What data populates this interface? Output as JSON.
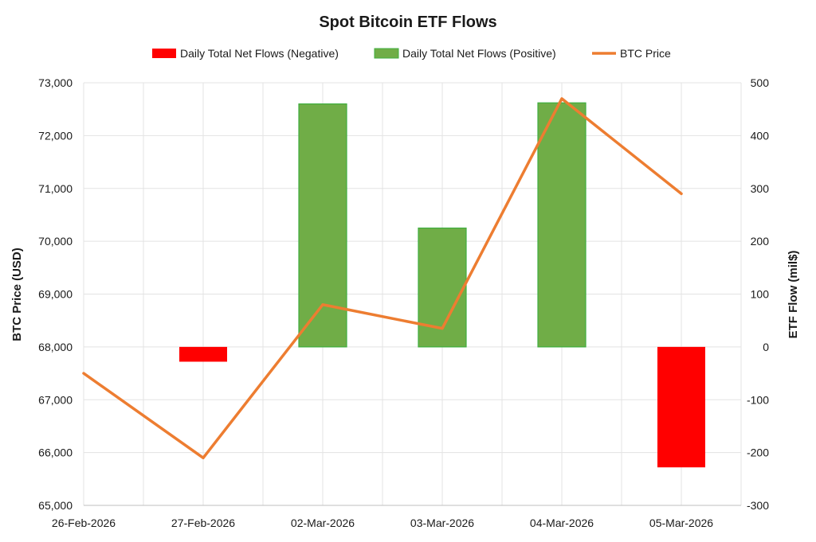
{
  "chart_data": {
    "type": "bar+line",
    "title": "Spot Bitcoin ETF Flows",
    "categories": [
      "26-Feb-2026",
      "27-Feb-2026",
      "02-Mar-2026",
      "03-Mar-2026",
      "04-Mar-2026",
      "05-Mar-2026"
    ],
    "flows": [
      null,
      -28,
      460,
      225,
      462,
      -228
    ],
    "btc_price": [
      67500,
      65900,
      68800,
      68350,
      72700,
      70900
    ],
    "legend": {
      "negative": "Daily Total Net Flows (Negative)",
      "positive": "Daily Total Net Flows (Positive)",
      "price": "BTC Price"
    },
    "legend_position": "top",
    "y_left": {
      "label": "BTC Price (USD)",
      "min": 65000,
      "max": 73000,
      "ticks": [
        "65,000",
        "66,000",
        "67,000",
        "68,000",
        "69,000",
        "70,000",
        "71,000",
        "72,000",
        "73,000"
      ]
    },
    "y_right": {
      "label": "ETF Flow (mil$)",
      "min": -300,
      "max": 500,
      "ticks": [
        "-300",
        "-200",
        "-100",
        "0",
        "100",
        "200",
        "300",
        "400",
        "500"
      ]
    },
    "colors": {
      "negative": "#ff0000",
      "positive": "#70ad47",
      "positive_border": "#3fae3f",
      "price": "#ed7d31",
      "grid": "#e3e3e3"
    },
    "grid": true
  }
}
